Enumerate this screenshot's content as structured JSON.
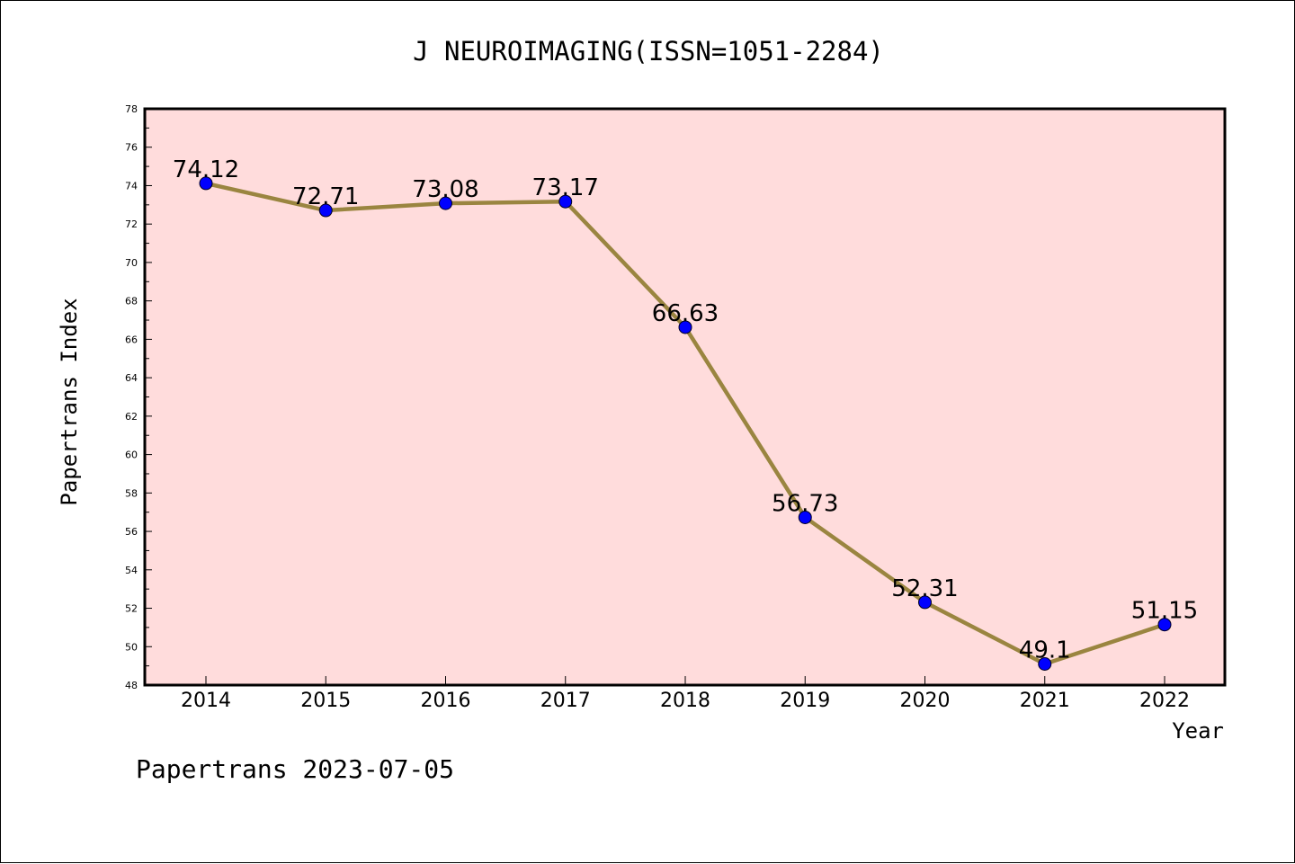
{
  "chart_data": {
    "type": "line",
    "title": "J NEUROIMAGING(ISSN=1051-2284)",
    "xlabel": "Year",
    "ylabel": "Papertrans Index",
    "categories": [
      "2014",
      "2015",
      "2016",
      "2017",
      "2018",
      "2019",
      "2020",
      "2021",
      "2022"
    ],
    "values": [
      74.12,
      72.71,
      73.08,
      73.17,
      66.63,
      56.73,
      52.31,
      49.1,
      51.15
    ],
    "data_labels": [
      "74.12",
      "72.71",
      "73.08",
      "73.17",
      "66.63",
      "56.73",
      "52.31",
      "49.1",
      "51.15"
    ],
    "ylim": [
      48,
      78
    ],
    "yticks": [
      48,
      50,
      52,
      54,
      56,
      58,
      60,
      62,
      64,
      66,
      68,
      70,
      72,
      74,
      76,
      78
    ],
    "grid": false,
    "legend": "none",
    "colors": {
      "plot_background": "#ffdcdc",
      "line": "#9a8540",
      "marker": "#0000ff"
    }
  },
  "footer": "Papertrans 2023-07-05"
}
